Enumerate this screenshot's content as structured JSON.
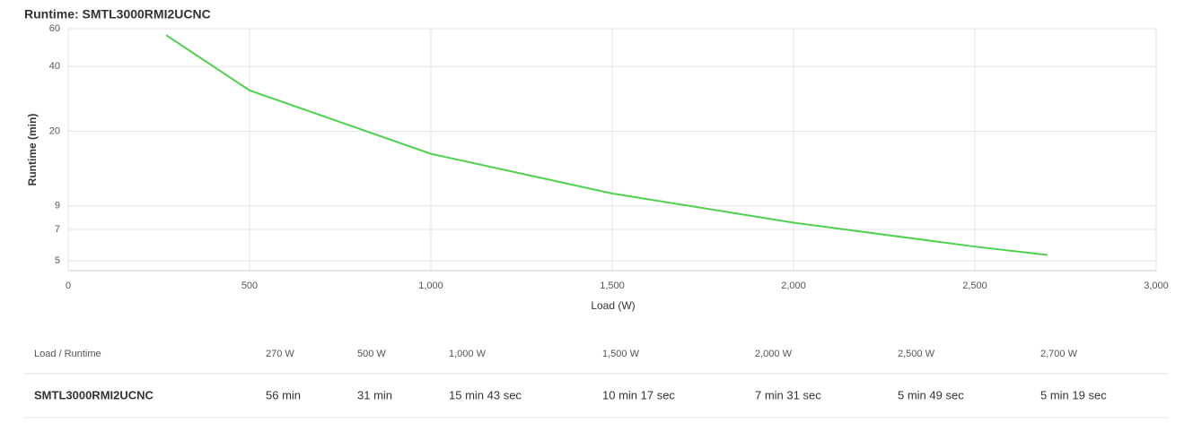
{
  "chart_data": {
    "type": "line",
    "title": "Runtime: SMTL3000RMI2UCNC",
    "x_label": "Load (W)",
    "y_label": "Runtime (min)",
    "x": [
      270,
      500,
      1000,
      1500,
      2000,
      2500,
      2700
    ],
    "series": [
      {
        "name": "SMTL3000RMI2UCNC",
        "color": "#4fd14f",
        "values": [
          56,
          31,
          15.72,
          10.28,
          7.52,
          5.82,
          5.32
        ]
      }
    ],
    "xlim": [
      0,
      3000
    ],
    "xticks": [
      0,
      500,
      {
        "value": 1000,
        "label": "1,000"
      },
      {
        "value": 1500,
        "label": "1,500"
      },
      {
        "value": 2000,
        "label": "2,000"
      },
      {
        "value": 2500,
        "label": "2,500"
      },
      {
        "value": 3000,
        "label": "3,000"
      }
    ],
    "ylim": [
      4.5,
      60
    ],
    "yticks": [
      5,
      7,
      9,
      20,
      40,
      60
    ],
    "log_y": true,
    "grid": true
  },
  "table": {
    "header": [
      "Load / Runtime",
      "270 W",
      "500 W",
      "1,000 W",
      "1,500 W",
      "2,000 W",
      "2,500 W",
      "2,700 W"
    ],
    "rows": [
      [
        "SMTL3000RMI2UCNC",
        "56 min",
        "31 min",
        "15 min 43 sec",
        "10 min 17 sec",
        "7 min 31 sec",
        "5 min 49 sec",
        "5 min 19 sec"
      ]
    ]
  }
}
